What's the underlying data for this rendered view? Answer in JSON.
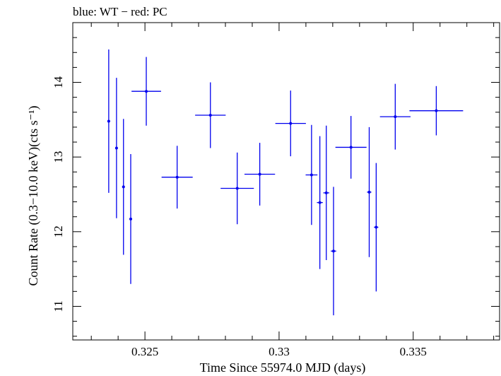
{
  "chart_data": {
    "type": "scatter",
    "title": "blue: WT − red: PC",
    "xlabel": "Time Since 55974.0 MJD (days)",
    "ylabel": "Count Rate (0.3−10.0 keV)(cts s⁻¹)",
    "xlim": [
      0.32231,
      0.33822
    ],
    "ylim": [
      10.55,
      14.8
    ],
    "xticks": [
      {
        "value": 0.325,
        "label": "0.325"
      },
      {
        "value": 0.33,
        "label": "0.33"
      },
      {
        "value": 0.335,
        "label": "0.335"
      }
    ],
    "yticks": [
      {
        "value": 11,
        "label": "11"
      },
      {
        "value": 12,
        "label": "12"
      },
      {
        "value": 13,
        "label": "13"
      },
      {
        "value": 14,
        "label": "14"
      }
    ],
    "x_minor_step": 0.001,
    "y_minor_step": 0.2,
    "grid": false,
    "colors": {
      "series": "#0000ee",
      "axes": "#000000"
    },
    "series": [
      {
        "points": [
          {
            "x": 0.32365,
            "y": 13.48,
            "xerr": 5e-05,
            "yerr": 0.96
          },
          {
            "x": 0.32394,
            "y": 13.12,
            "xerr": 5e-05,
            "yerr": 0.94
          },
          {
            "x": 0.3242,
            "y": 12.6,
            "xerr": 5e-05,
            "yerr": 0.91
          },
          {
            "x": 0.32447,
            "y": 12.17,
            "xerr": 5e-05,
            "yerr": 0.87
          },
          {
            "x": 0.32505,
            "y": 13.88,
            "xerr": 0.00055,
            "yerr": 0.46
          },
          {
            "x": 0.3262,
            "y": 12.73,
            "xerr": 0.00058,
            "yerr": 0.42
          },
          {
            "x": 0.32744,
            "y": 13.56,
            "xerr": 0.00057,
            "yerr": 0.44
          },
          {
            "x": 0.32844,
            "y": 12.58,
            "xerr": 0.00062,
            "yerr": 0.48
          },
          {
            "x": 0.32928,
            "y": 12.77,
            "xerr": 0.00057,
            "yerr": 0.42
          },
          {
            "x": 0.33043,
            "y": 13.45,
            "xerr": 0.00057,
            "yerr": 0.44
          },
          {
            "x": 0.33121,
            "y": 12.76,
            "xerr": 0.00022,
            "yerr": 0.67
          },
          {
            "x": 0.33152,
            "y": 12.39,
            "xerr": 0.00011,
            "yerr": 0.89
          },
          {
            "x": 0.33176,
            "y": 12.52,
            "xerr": 0.00011,
            "yerr": 0.9
          },
          {
            "x": 0.33203,
            "y": 11.74,
            "xerr": 0.0001,
            "yerr": 0.86
          },
          {
            "x": 0.33268,
            "y": 13.13,
            "xerr": 0.00058,
            "yerr": 0.42
          },
          {
            "x": 0.33336,
            "y": 12.53,
            "xerr": 8e-05,
            "yerr": 0.87
          },
          {
            "x": 0.33362,
            "y": 12.06,
            "xerr": 8e-05,
            "yerr": 0.86
          },
          {
            "x": 0.33433,
            "y": 13.54,
            "xerr": 0.00057,
            "yerr": 0.44
          },
          {
            "x": 0.33586,
            "y": 13.62,
            "xerr": 0.001,
            "yerr": 0.33
          }
        ]
      }
    ]
  }
}
